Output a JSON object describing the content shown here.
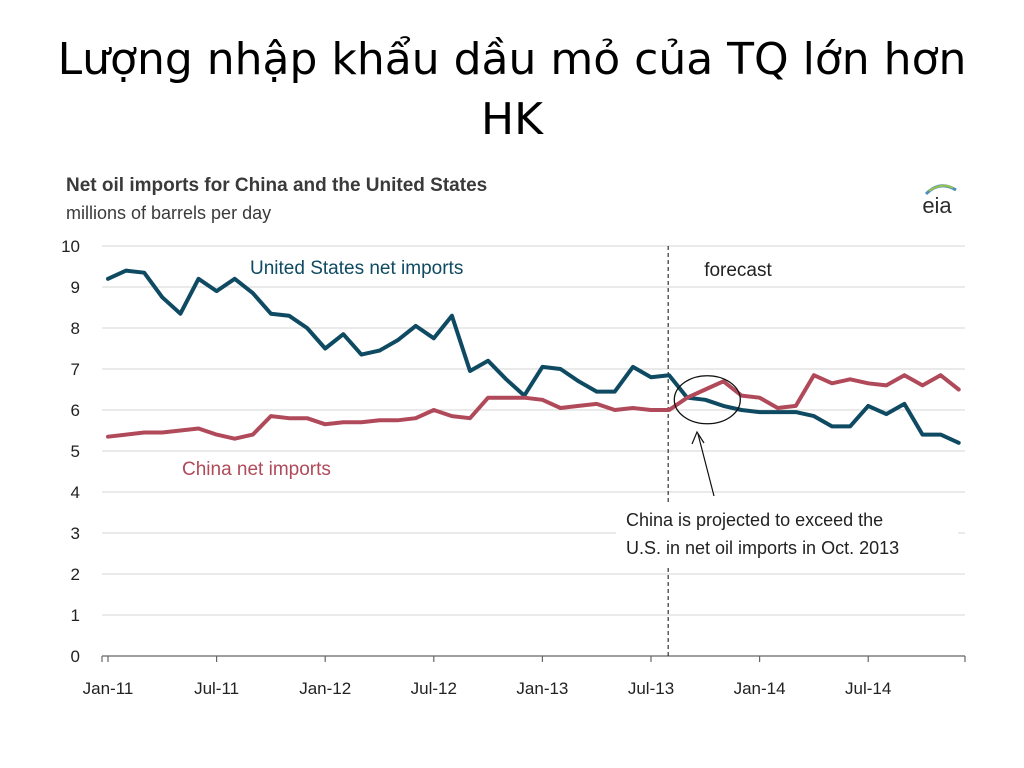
{
  "slide": {
    "title": "Lượng nhập khẩu dầu mỏ của TQ lớn hơn HK"
  },
  "logo": {
    "text": "eia"
  },
  "chart_data": {
    "type": "line",
    "title": "Net oil imports for China and the United  States",
    "subtitle": "millions of barrels per day",
    "xlabel": "",
    "ylabel": "",
    "ylim": [
      0,
      10
    ],
    "yticks": [
      "0",
      "1",
      "2",
      "3",
      "4",
      "5",
      "6",
      "7",
      "8",
      "9",
      "10"
    ],
    "x_tick_labels": [
      "Jan-11",
      "Jul-11",
      "Jan-12",
      "Jul-12",
      "Jan-13",
      "Jul-13",
      "Jan-14",
      "Jul-14"
    ],
    "x_tick_months": [
      "Jan-11",
      "Jul-11",
      "Jan-12",
      "Jul-12",
      "Jan-13",
      "Jul-13",
      "Jan-14",
      "Jul-14"
    ],
    "x": [
      "Jan-11",
      "Feb-11",
      "Mar-11",
      "Apr-11",
      "May-11",
      "Jun-11",
      "Jul-11",
      "Aug-11",
      "Sep-11",
      "Oct-11",
      "Nov-11",
      "Dec-11",
      "Jan-12",
      "Feb-12",
      "Mar-12",
      "Apr-12",
      "May-12",
      "Jun-12",
      "Jul-12",
      "Aug-12",
      "Sep-12",
      "Oct-12",
      "Nov-12",
      "Dec-12",
      "Jan-13",
      "Feb-13",
      "Mar-13",
      "Apr-13",
      "May-13",
      "Jun-13",
      "Jul-13",
      "Aug-13",
      "Sep-13",
      "Oct-13",
      "Nov-13",
      "Dec-13",
      "Jan-14",
      "Feb-14",
      "Mar-14",
      "Apr-14",
      "May-14",
      "Jun-14",
      "Jul-14",
      "Aug-14",
      "Sep-14",
      "Oct-14",
      "Nov-14",
      "Dec-14"
    ],
    "grid": true,
    "forecast": {
      "label": "forecast",
      "start": "Aug-13"
    },
    "series": [
      {
        "name": "United States net imports",
        "color": "#0e4a62",
        "values": [
          9.2,
          9.4,
          9.35,
          8.75,
          8.35,
          9.2,
          8.9,
          9.2,
          8.85,
          8.35,
          8.3,
          8.0,
          7.5,
          7.85,
          7.35,
          7.45,
          7.7,
          8.05,
          7.75,
          8.3,
          6.95,
          7.2,
          6.75,
          6.35,
          7.05,
          7.0,
          6.7,
          6.45,
          6.45,
          7.05,
          6.8,
          6.85,
          6.3,
          6.25,
          6.1,
          6.0,
          5.95,
          5.95,
          5.95,
          5.85,
          5.6,
          5.6,
          6.1,
          5.9,
          6.15,
          5.4,
          5.4,
          5.2
        ]
      },
      {
        "name": "China net imports",
        "color": "#b04a5a",
        "values": [
          5.35,
          5.4,
          5.45,
          5.45,
          5.5,
          5.55,
          5.4,
          5.3,
          5.4,
          5.85,
          5.8,
          5.8,
          5.65,
          5.7,
          5.7,
          5.75,
          5.75,
          5.8,
          6.0,
          5.85,
          5.8,
          6.3,
          6.3,
          6.3,
          6.25,
          6.05,
          6.1,
          6.15,
          6.0,
          6.05,
          6.0,
          6.0,
          6.3,
          6.5,
          6.7,
          6.35,
          6.3,
          6.05,
          6.1,
          6.85,
          6.65,
          6.75,
          6.65,
          6.6,
          6.85,
          6.6,
          6.85,
          6.5
        ]
      }
    ],
    "annotation": {
      "text_lines": [
        "China is projected to exceed the",
        "U.S. in net oil imports in Oct. 2013"
      ],
      "target": "Oct-13"
    }
  }
}
